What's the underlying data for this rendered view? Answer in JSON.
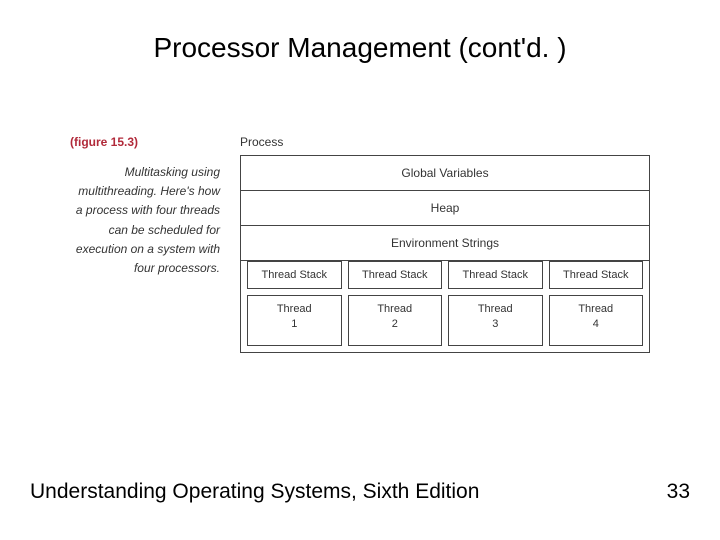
{
  "title": "Processor Management (cont'd. )",
  "figure": {
    "label": "(figure 15.3)",
    "caption": "Multitasking using multithreading. Here's how a process with four threads can be scheduled for execution on a system with four processors.",
    "process_label": "Process",
    "sections": {
      "global_vars": "Global Variables",
      "heap": "Heap",
      "env_strings": "Environment Strings"
    },
    "threads": [
      {
        "stack": "Thread Stack",
        "name": "Thread",
        "id": "1"
      },
      {
        "stack": "Thread Stack",
        "name": "Thread",
        "id": "2"
      },
      {
        "stack": "Thread Stack",
        "name": "Thread",
        "id": "3"
      },
      {
        "stack": "Thread Stack",
        "name": "Thread",
        "id": "4"
      }
    ]
  },
  "footer": {
    "book": "Understanding Operating Systems, Sixth Edition",
    "page": "33"
  },
  "colors": {
    "figure_label": "#b12a3a",
    "text": "#333333",
    "border": "#444444",
    "background": "#ffffff"
  }
}
